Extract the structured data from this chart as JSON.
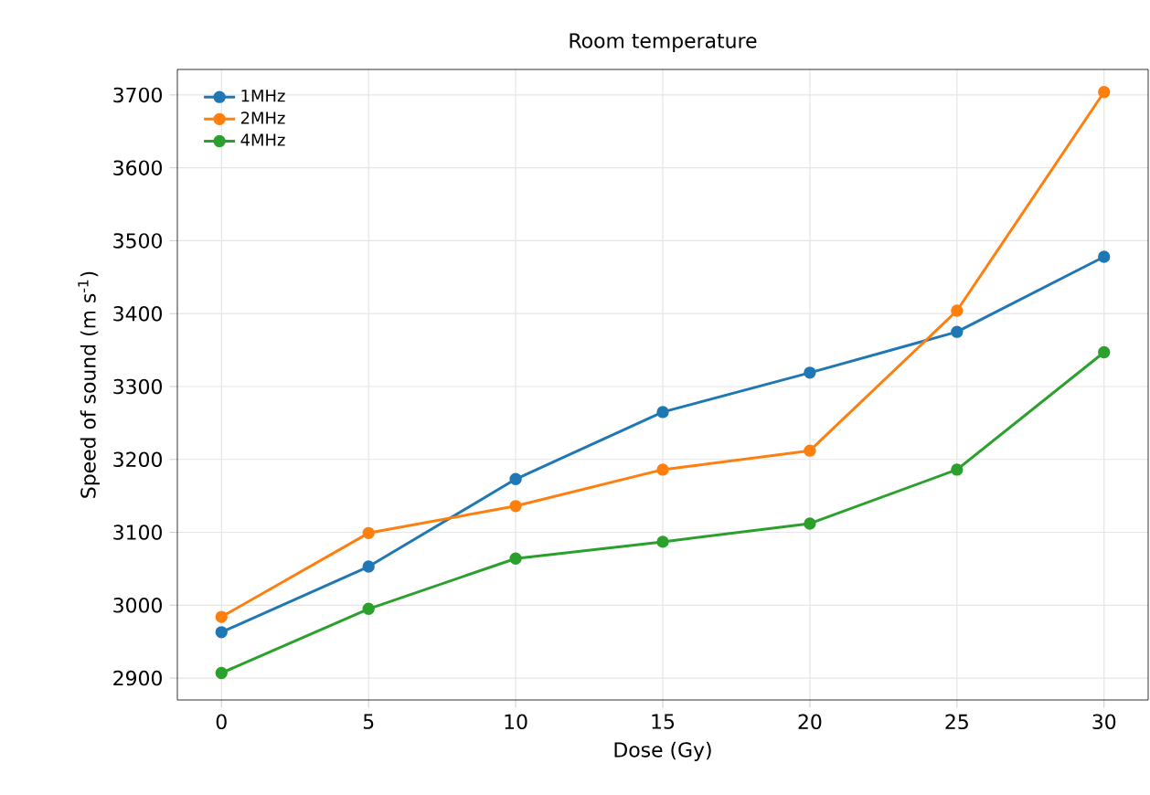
{
  "chart_data": {
    "type": "line",
    "title": "Room temperature",
    "xlabel": "Dose (Gy)",
    "ylabel": "Speed of sound (m s$^{-1}$)",
    "x": [
      0,
      5,
      10,
      15,
      20,
      25,
      30
    ],
    "series": [
      {
        "name": "1MHz",
        "color": "#1f77b4",
        "values": [
          2963,
          3053,
          3173,
          3265,
          3319,
          3375,
          3478
        ]
      },
      {
        "name": "2MHz",
        "color": "#ff7f0e",
        "values": [
          2984,
          3099,
          3136,
          3186,
          3212,
          3404,
          3704
        ]
      },
      {
        "name": "4MHz",
        "color": "#2ca02c",
        "values": [
          2907,
          2995,
          3064,
          3087,
          3112,
          3186,
          3347
        ]
      }
    ],
    "xlim": [
      -1.5,
      31.5
    ],
    "ylim": [
      2870,
      3735
    ],
    "xticks": [
      0,
      5,
      10,
      15,
      20,
      25,
      30
    ],
    "yticks": [
      2900,
      3000,
      3100,
      3200,
      3300,
      3400,
      3500,
      3600,
      3700
    ],
    "grid": true,
    "legend": "top left",
    "marker": "circle",
    "line_style": "solid"
  }
}
